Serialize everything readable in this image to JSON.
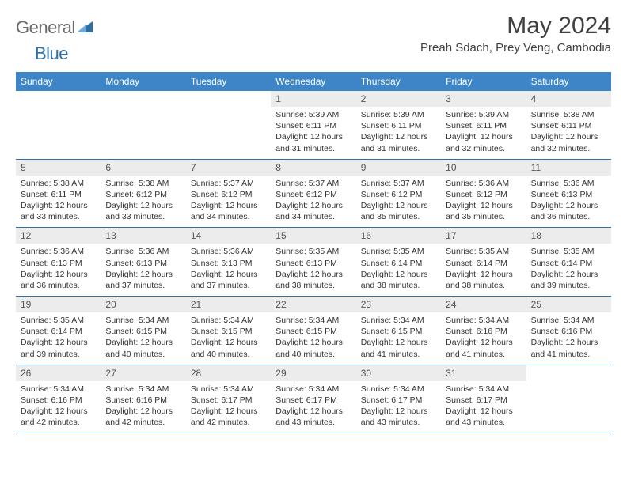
{
  "brand": {
    "part1": "General",
    "part2": "Blue"
  },
  "title": "May 2024",
  "location": "Preah Sdach, Prey Veng, Cambodia",
  "colors": {
    "header_bg": "#3d85c6",
    "header_text": "#ffffff",
    "daynum_bg": "#ececec",
    "rule": "#2f6fa7",
    "logo_gray": "#6a6a6a",
    "logo_blue": "#2f6fa7",
    "text": "#333333"
  },
  "typography": {
    "title_fontsize": 30,
    "location_fontsize": 15,
    "header_fontsize": 12,
    "body_fontsize": 10.5
  },
  "daynames": [
    "Sunday",
    "Monday",
    "Tuesday",
    "Wednesday",
    "Thursday",
    "Friday",
    "Saturday"
  ],
  "weeks": [
    [
      null,
      null,
      null,
      {
        "n": "1",
        "sr": "5:39 AM",
        "ss": "6:11 PM",
        "dl": "12 hours and 31 minutes."
      },
      {
        "n": "2",
        "sr": "5:39 AM",
        "ss": "6:11 PM",
        "dl": "12 hours and 31 minutes."
      },
      {
        "n": "3",
        "sr": "5:39 AM",
        "ss": "6:11 PM",
        "dl": "12 hours and 32 minutes."
      },
      {
        "n": "4",
        "sr": "5:38 AM",
        "ss": "6:11 PM",
        "dl": "12 hours and 32 minutes."
      }
    ],
    [
      {
        "n": "5",
        "sr": "5:38 AM",
        "ss": "6:11 PM",
        "dl": "12 hours and 33 minutes."
      },
      {
        "n": "6",
        "sr": "5:38 AM",
        "ss": "6:12 PM",
        "dl": "12 hours and 33 minutes."
      },
      {
        "n": "7",
        "sr": "5:37 AM",
        "ss": "6:12 PM",
        "dl": "12 hours and 34 minutes."
      },
      {
        "n": "8",
        "sr": "5:37 AM",
        "ss": "6:12 PM",
        "dl": "12 hours and 34 minutes."
      },
      {
        "n": "9",
        "sr": "5:37 AM",
        "ss": "6:12 PM",
        "dl": "12 hours and 35 minutes."
      },
      {
        "n": "10",
        "sr": "5:36 AM",
        "ss": "6:12 PM",
        "dl": "12 hours and 35 minutes."
      },
      {
        "n": "11",
        "sr": "5:36 AM",
        "ss": "6:13 PM",
        "dl": "12 hours and 36 minutes."
      }
    ],
    [
      {
        "n": "12",
        "sr": "5:36 AM",
        "ss": "6:13 PM",
        "dl": "12 hours and 36 minutes."
      },
      {
        "n": "13",
        "sr": "5:36 AM",
        "ss": "6:13 PM",
        "dl": "12 hours and 37 minutes."
      },
      {
        "n": "14",
        "sr": "5:36 AM",
        "ss": "6:13 PM",
        "dl": "12 hours and 37 minutes."
      },
      {
        "n": "15",
        "sr": "5:35 AM",
        "ss": "6:13 PM",
        "dl": "12 hours and 38 minutes."
      },
      {
        "n": "16",
        "sr": "5:35 AM",
        "ss": "6:14 PM",
        "dl": "12 hours and 38 minutes."
      },
      {
        "n": "17",
        "sr": "5:35 AM",
        "ss": "6:14 PM",
        "dl": "12 hours and 38 minutes."
      },
      {
        "n": "18",
        "sr": "5:35 AM",
        "ss": "6:14 PM",
        "dl": "12 hours and 39 minutes."
      }
    ],
    [
      {
        "n": "19",
        "sr": "5:35 AM",
        "ss": "6:14 PM",
        "dl": "12 hours and 39 minutes."
      },
      {
        "n": "20",
        "sr": "5:34 AM",
        "ss": "6:15 PM",
        "dl": "12 hours and 40 minutes."
      },
      {
        "n": "21",
        "sr": "5:34 AM",
        "ss": "6:15 PM",
        "dl": "12 hours and 40 minutes."
      },
      {
        "n": "22",
        "sr": "5:34 AM",
        "ss": "6:15 PM",
        "dl": "12 hours and 40 minutes."
      },
      {
        "n": "23",
        "sr": "5:34 AM",
        "ss": "6:15 PM",
        "dl": "12 hours and 41 minutes."
      },
      {
        "n": "24",
        "sr": "5:34 AM",
        "ss": "6:16 PM",
        "dl": "12 hours and 41 minutes."
      },
      {
        "n": "25",
        "sr": "5:34 AM",
        "ss": "6:16 PM",
        "dl": "12 hours and 41 minutes."
      }
    ],
    [
      {
        "n": "26",
        "sr": "5:34 AM",
        "ss": "6:16 PM",
        "dl": "12 hours and 42 minutes."
      },
      {
        "n": "27",
        "sr": "5:34 AM",
        "ss": "6:16 PM",
        "dl": "12 hours and 42 minutes."
      },
      {
        "n": "28",
        "sr": "5:34 AM",
        "ss": "6:17 PM",
        "dl": "12 hours and 42 minutes."
      },
      {
        "n": "29",
        "sr": "5:34 AM",
        "ss": "6:17 PM",
        "dl": "12 hours and 43 minutes."
      },
      {
        "n": "30",
        "sr": "5:34 AM",
        "ss": "6:17 PM",
        "dl": "12 hours and 43 minutes."
      },
      {
        "n": "31",
        "sr": "5:34 AM",
        "ss": "6:17 PM",
        "dl": "12 hours and 43 minutes."
      },
      null
    ]
  ],
  "labels": {
    "sunrise": "Sunrise:",
    "sunset": "Sunset:",
    "daylight": "Daylight:"
  }
}
